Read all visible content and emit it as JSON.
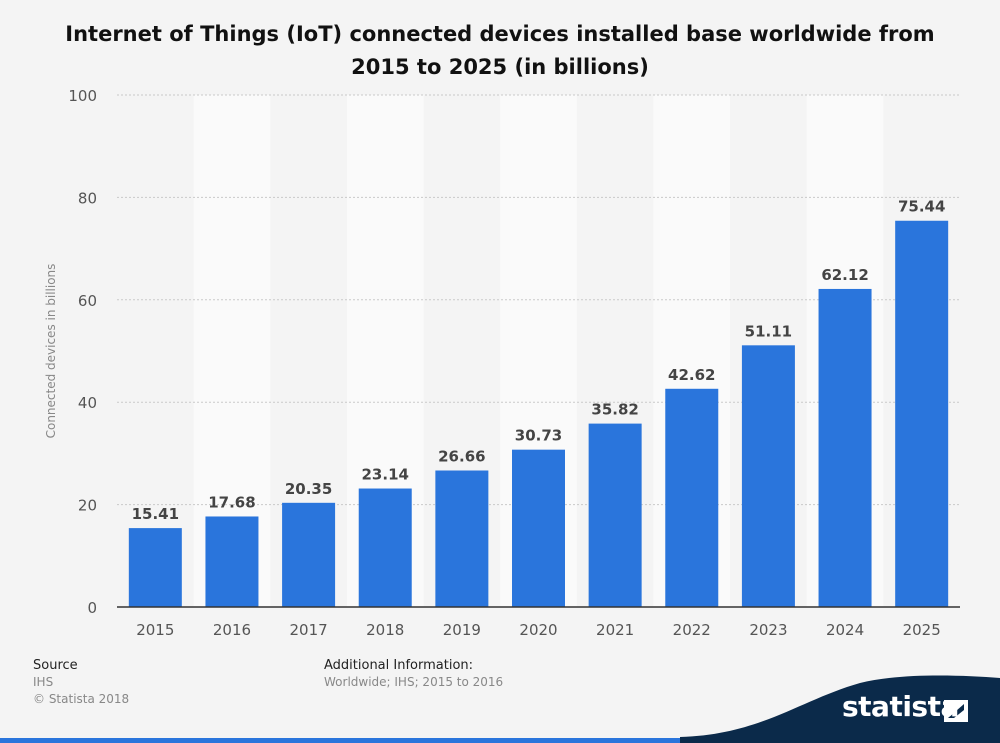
{
  "chart_data": {
    "type": "bar",
    "title": "Internet of Things (IoT) connected devices installed base worldwide from 2015 to 2025 (in billions)",
    "xlabel": "",
    "ylabel": "Connected devices in billions",
    "categories": [
      "2015",
      "2016",
      "2017",
      "2018",
      "2019",
      "2020",
      "2021",
      "2022",
      "2023",
      "2024",
      "2025"
    ],
    "values": [
      15.41,
      17.68,
      20.35,
      23.14,
      26.66,
      30.73,
      35.82,
      42.62,
      51.11,
      62.12,
      75.44
    ],
    "data_labels": [
      "15.41",
      "17.68",
      "20.35",
      "23.14",
      "26.66",
      "30.73",
      "35.82",
      "42.62",
      "51.11",
      "62.12",
      "75.44"
    ],
    "ylim": [
      0,
      100
    ],
    "yticks": [
      0,
      20,
      40,
      60,
      80,
      100
    ],
    "grid": true,
    "bar_color": "#2a75dc"
  },
  "footer": {
    "source_heading": "Source",
    "source_name": "IHS",
    "copyright": "© Statista 2018",
    "info_heading": "Additional Information:",
    "info_text": "Worldwide; IHS; 2015 to 2016"
  },
  "brand": {
    "name": "statista",
    "band_color": "#0b2a4a",
    "accent_color": "#2a75dc"
  }
}
